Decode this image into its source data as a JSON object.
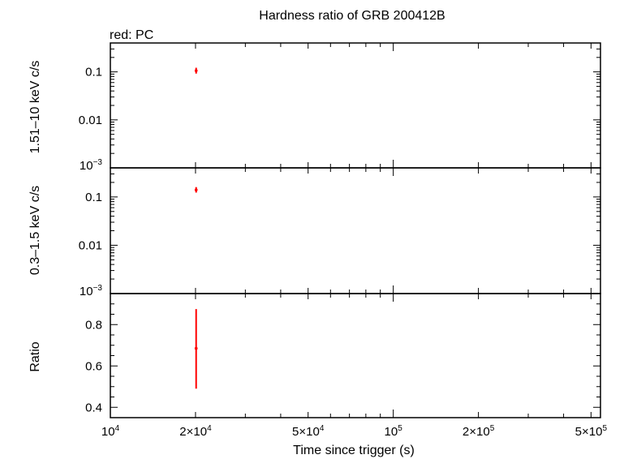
{
  "chart_data": {
    "type": "scatter",
    "title": "Hardness ratio of GRB 200412B",
    "subtitle": "red: PC",
    "xlabel": "Time since trigger (s)",
    "xscale": "log",
    "xlim": [
      10000,
      540000
    ],
    "x_ticks": [
      {
        "value": 10000,
        "label": "10",
        "sup": "4"
      },
      {
        "value": 20000,
        "label": "2×10",
        "sup": "4"
      },
      {
        "value": 50000,
        "label": "5×10",
        "sup": "4"
      },
      {
        "value": 100000,
        "label": "10",
        "sup": "5"
      },
      {
        "value": 200000,
        "label": "2×10",
        "sup": "5"
      },
      {
        "value": 500000,
        "label": "5×10",
        "sup": "5"
      }
    ],
    "color": "#ff0000",
    "panels": [
      {
        "ylabel": "1.51–10 keV c/s",
        "yscale": "log",
        "ylim": [
          0.001,
          0.4
        ],
        "y_ticks": [
          {
            "value": 0.1,
            "label": "0.1",
            "sup": ""
          },
          {
            "value": 0.01,
            "label": "0.01",
            "sup": ""
          },
          {
            "value": 0.001,
            "label": "10",
            "sup": "−3"
          }
        ],
        "points": [
          {
            "x": 20100,
            "y": 0.106,
            "yerr_low": 0.092,
            "yerr_high": 0.122,
            "xerr_low": 19900,
            "xerr_high": 20300
          }
        ]
      },
      {
        "ylabel": "0.3–1.5 keV c/s",
        "yscale": "log",
        "ylim": [
          0.001,
          0.4
        ],
        "y_ticks": [
          {
            "value": 0.1,
            "label": "0.1",
            "sup": ""
          },
          {
            "value": 0.01,
            "label": "0.01",
            "sup": ""
          },
          {
            "value": 0.001,
            "label": "10",
            "sup": "−3"
          }
        ],
        "points": [
          {
            "x": 20100,
            "y": 0.14,
            "yerr_low": 0.123,
            "yerr_high": 0.16,
            "xerr_low": 19900,
            "xerr_high": 20300
          }
        ]
      },
      {
        "ylabel": "Ratio",
        "yscale": "linear",
        "ylim": [
          0.35,
          0.95
        ],
        "y_ticks": [
          {
            "value": 0.4,
            "label": "0.4",
            "sup": ""
          },
          {
            "value": 0.6,
            "label": "0.6",
            "sup": ""
          },
          {
            "value": 0.8,
            "label": "0.8",
            "sup": ""
          }
        ],
        "points": [
          {
            "x": 20100,
            "y": 0.685,
            "yerr_low": 0.49,
            "yerr_high": 0.875,
            "xerr_low": 19900,
            "xerr_high": 20300
          }
        ]
      }
    ]
  }
}
